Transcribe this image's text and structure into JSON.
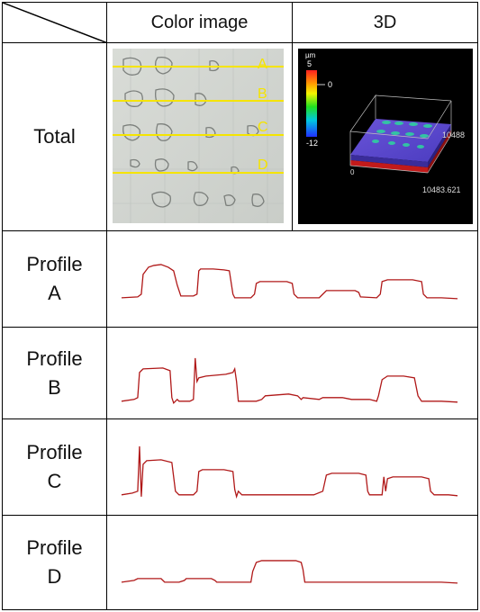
{
  "header": {
    "col_color": "Color image",
    "col_3d": "3D"
  },
  "rows": {
    "total_label": "Total",
    "profiles": [
      {
        "line1": "Profile",
        "line2": "A"
      },
      {
        "line1": "Profile",
        "line2": "B"
      },
      {
        "line1": "Profile",
        "line2": "C"
      },
      {
        "line1": "Profile",
        "line2": "D"
      }
    ]
  },
  "color_image": {
    "line_labels": [
      "A",
      "B",
      "C",
      "D"
    ],
    "line_color": "#f5e400"
  },
  "image_3d": {
    "scale_unit": "µm",
    "scale_max": "5",
    "scale_mid": "0",
    "scale_min": "-12",
    "axis_origin": "0",
    "axis_right": "10488",
    "axis_bottom": "10483.621"
  },
  "profile_color": "#b01818"
}
